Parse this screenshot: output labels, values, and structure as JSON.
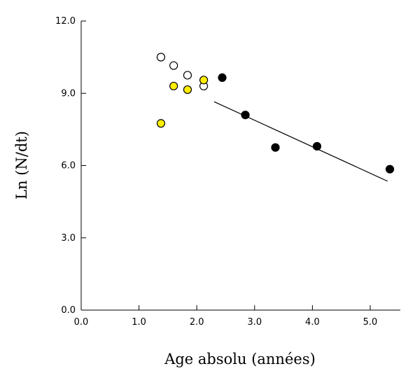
{
  "chart_data": {
    "type": "scatter",
    "xlabel": "Age absolu (années)",
    "ylabel": "Ln (N/dt)",
    "xlim": [
      0,
      5.5
    ],
    "ylim": [
      0,
      12
    ],
    "xticks": [
      "0.0",
      "1.0",
      "2.0",
      "3.0",
      "4.0",
      "5.0"
    ],
    "yticks": [
      "0.0",
      "3.0",
      "6.0",
      "9.0",
      "12.0"
    ],
    "grid": false,
    "series": [
      {
        "marker": "open-circle",
        "color": "#ffffff",
        "x": [
          1.38,
          1.6,
          1.84,
          2.12
        ],
        "y": [
          10.5,
          10.15,
          9.75,
          9.3
        ]
      },
      {
        "marker": "filled-circle",
        "color": "#ffee00",
        "x": [
          1.38,
          1.6,
          1.84,
          2.12
        ],
        "y": [
          7.75,
          9.3,
          9.15,
          9.55
        ]
      },
      {
        "marker": "filled-circle",
        "color": "#000000",
        "x": [
          2.44,
          2.84,
          3.36,
          4.08,
          5.34
        ],
        "y": [
          9.65,
          8.1,
          6.75,
          6.8,
          5.85
        ]
      }
    ],
    "trendline": {
      "x": [
        2.3,
        5.3
      ],
      "y": [
        8.65,
        5.35
      ]
    }
  }
}
